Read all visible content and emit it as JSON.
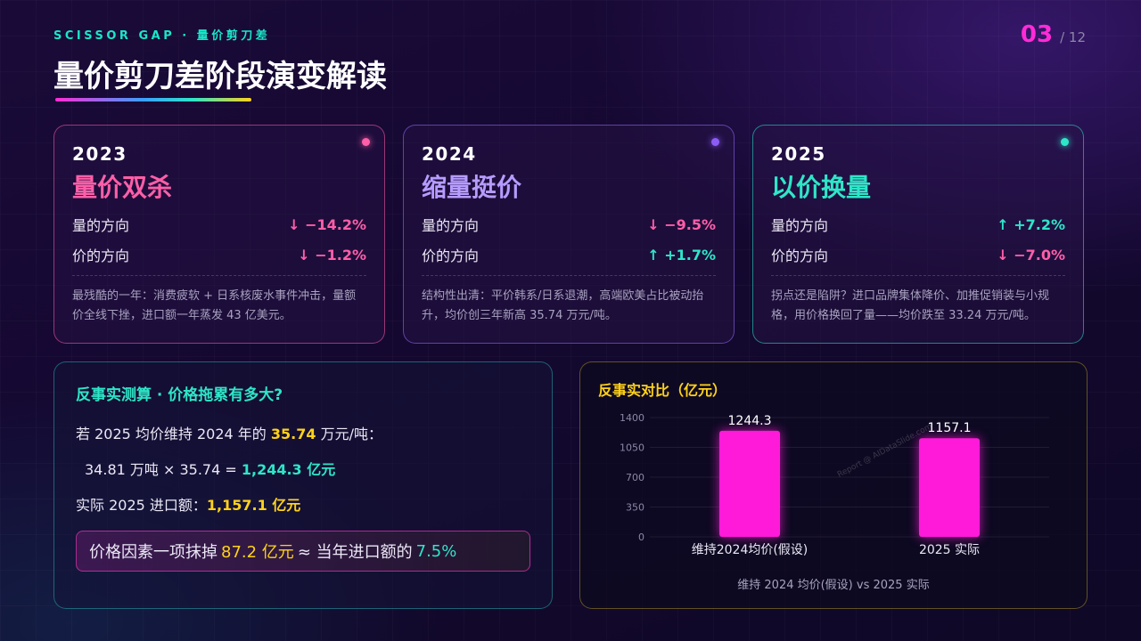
{
  "header": {
    "kicker": "SCISSOR GAP · 量价剪刀差",
    "title": "量价剪刀差阶段演变解读",
    "page_current": "03",
    "page_total": "/ 12"
  },
  "colors": {
    "accent_pink": "#ff2bd6",
    "accent_cyan": "#2ee6c8",
    "accent_yellow": "#ffd21a",
    "accent_purple": "#8b5cf6"
  },
  "cards": [
    {
      "year": "2023",
      "phase": "量价双杀",
      "volume_label": "量的方向",
      "volume_value": "↓ −14.2%",
      "price_label": "价的方向",
      "price_value": "↓ −1.2%",
      "desc": "最残酷的一年：消费疲软 + 日系核废水事件冲击，量额价全线下挫，进口额一年蒸发 43 亿美元。"
    },
    {
      "year": "2024",
      "phase": "缩量挺价",
      "volume_label": "量的方向",
      "volume_value": "↓ −9.5%",
      "price_label": "价的方向",
      "price_value": "↑ +1.7%",
      "desc": "结构性出清：平价韩系/日系退潮，高端欧美占比被动抬升，均价创三年新高 35.74 万元/吨。"
    },
    {
      "year": "2025",
      "phase": "以价换量",
      "volume_label": "量的方向",
      "volume_value": "↑ +7.2%",
      "price_label": "价的方向",
      "price_value": "↓ −7.0%",
      "desc": "拐点还是陷阱？进口品牌集体降价、加推促销装与小规格，用价格换回了量——均价跌至 33.24 万元/吨。"
    }
  ],
  "calc": {
    "title": "反事实测算 · 价格拖累有多大?",
    "line1_prefix": "若 2025 均价维持 2024 年的 ",
    "line1_highlight": "35.74",
    "line1_suffix": " 万元/吨：",
    "line2_prefix": "34.81 万吨 × 35.74 = ",
    "line2_highlight": "1,244.3 亿元",
    "line3_prefix": "实际 2025 进口额：",
    "line3_highlight": "1,157.1 亿元",
    "box_prefix": "价格因素一项抹掉",
    "box_amount": "87.2 亿元",
    "box_middle": "≈ 当年进口额的",
    "box_pct": "7.5%"
  },
  "chart_panel": {
    "title": "反事实对比（亿元）",
    "caption": "维持 2024 均价(假设) vs 2025 实际",
    "watermark": "Report @ AIDataSlide.com"
  },
  "chart_data": {
    "type": "bar",
    "categories": [
      "维持2024均价(假设)",
      "2025 实际"
    ],
    "values": [
      1244.3,
      1157.1
    ],
    "value_labels": [
      "1244.3",
      "1157.1"
    ],
    "y_ticks": [
      0,
      350,
      700,
      1050,
      1400
    ],
    "ylim": [
      0,
      1400
    ],
    "bar_color": "#ff1ad9",
    "grid": true,
    "legend": "none"
  }
}
